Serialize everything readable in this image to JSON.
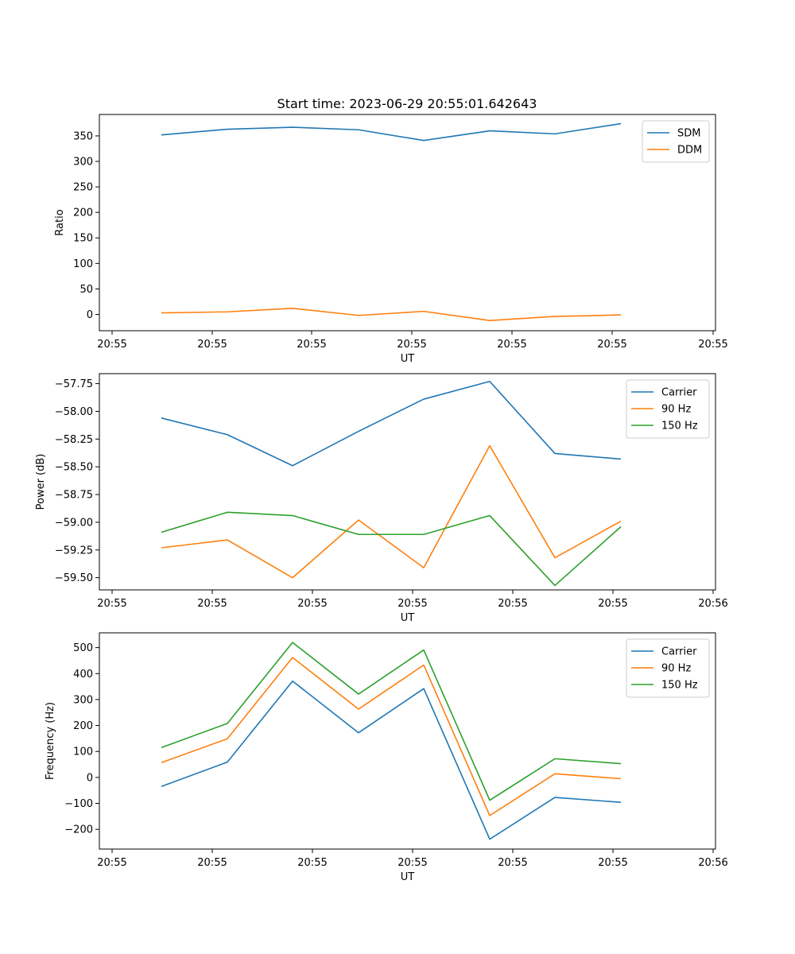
{
  "figure": {
    "title": "Start time: 2023-06-29 20:55:01.642643"
  },
  "chart_data": [
    {
      "type": "line",
      "title": "Start time: 2023-06-29 20:55:01.642643",
      "xlabel": "UT",
      "ylabel": "Ratio",
      "x_tick_labels": [
        "20:55",
        "20:55",
        "20:55",
        "20:55",
        "20:55",
        "20:55",
        "20:55"
      ],
      "y_ticks": [
        0,
        50,
        100,
        150,
        200,
        250,
        300,
        350
      ],
      "ylim": [
        -32,
        392
      ],
      "grid": false,
      "legend": "top-right",
      "series": [
        {
          "name": "SDM",
          "color": "#1f77b4",
          "values": [
            352,
            363,
            367,
            362,
            341,
            360,
            354,
            374
          ]
        },
        {
          "name": "DDM",
          "color": "#ff7f0e",
          "values": [
            3,
            5,
            12,
            -2,
            6,
            -12,
            -4,
            -1
          ]
        }
      ]
    },
    {
      "type": "line",
      "title": "",
      "xlabel": "UT",
      "ylabel": "Power (dB)",
      "x_tick_labels": [
        "20:55",
        "20:55",
        "20:55",
        "20:55",
        "20:55",
        "20:55",
        "20:56"
      ],
      "y_ticks": [
        "-59.50",
        "-59.25",
        "-59.00",
        "-58.75",
        "-58.50",
        "-58.25",
        "-58.00",
        "-57.75"
      ],
      "ylim": [
        -59.61,
        -57.66
      ],
      "grid": false,
      "legend": "top-right",
      "series": [
        {
          "name": "Carrier",
          "color": "#1f77b4",
          "values": [
            -58.06,
            -58.21,
            -58.49,
            -58.18,
            -57.89,
            -57.73,
            -58.38,
            -58.43
          ]
        },
        {
          "name": "90 Hz",
          "color": "#ff7f0e",
          "values": [
            -59.23,
            -59.16,
            -59.5,
            -58.98,
            -59.41,
            -58.31,
            -59.32,
            -58.99
          ]
        },
        {
          "name": "150 Hz",
          "color": "#2ca02c",
          "values": [
            -59.09,
            -58.91,
            -58.94,
            -59.11,
            -59.11,
            -58.94,
            -59.57,
            -59.04
          ]
        }
      ]
    },
    {
      "type": "line",
      "title": "",
      "xlabel": "UT",
      "ylabel": "Frequency (Hz)",
      "x_tick_labels": [
        "20:55",
        "20:55",
        "20:55",
        "20:55",
        "20:55",
        "20:55",
        "20:56"
      ],
      "y_ticks": [
        -200,
        -100,
        0,
        100,
        200,
        300,
        400,
        500
      ],
      "ylim": [
        -276,
        557
      ],
      "grid": false,
      "legend": "top-right",
      "series": [
        {
          "name": "Carrier",
          "color": "#1f77b4",
          "values": [
            -35,
            59,
            371,
            172,
            342,
            -238,
            -77,
            -96
          ]
        },
        {
          "name": "90 Hz",
          "color": "#ff7f0e",
          "values": [
            57,
            149,
            462,
            263,
            433,
            -147,
            14,
            -5
          ]
        },
        {
          "name": "150 Hz",
          "color": "#2ca02c",
          "values": [
            115,
            208,
            520,
            321,
            491,
            -88,
            72,
            53
          ]
        }
      ]
    }
  ]
}
